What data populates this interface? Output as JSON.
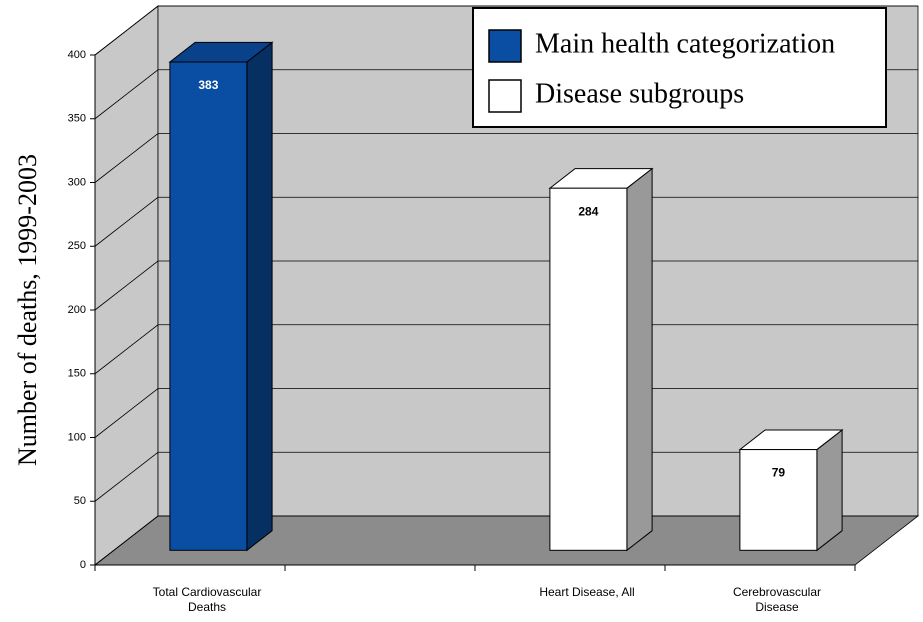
{
  "chart_data": {
    "type": "bar3d",
    "y_label": "Number of deaths, 1999-2003",
    "categories": [
      "Total Cardiovascular Deaths",
      null,
      "Heart Disease, All",
      "Cerebrovascular Disease"
    ],
    "series": [
      {
        "name": "Main health categorization",
        "color": "#0a4ea3",
        "values": [
          383,
          null,
          null,
          null
        ]
      },
      {
        "name": "Disease subgroups",
        "color": "#ffffff",
        "values": [
          null,
          null,
          284,
          79
        ]
      }
    ],
    "ylim": [
      0,
      400
    ],
    "yticks": [
      0,
      50,
      100,
      150,
      200,
      250,
      300,
      350,
      400
    ],
    "grid": true,
    "legend": "top-right"
  }
}
